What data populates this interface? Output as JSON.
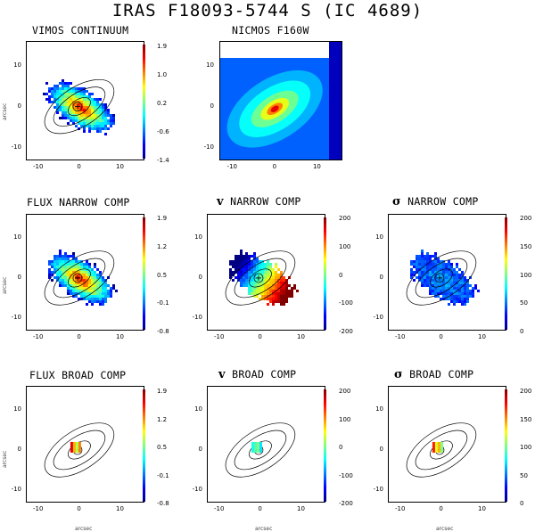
{
  "figure": {
    "title": "IRAS F18093-5744 S (IC 4689)",
    "axis_label": "arcsec",
    "y_ticks": [
      "10",
      "0",
      "-10"
    ],
    "x_ticks": [
      "-10",
      "0",
      "10"
    ]
  },
  "panels": [
    {
      "id": "p11",
      "title": "VIMOS CONTINUUM",
      "colorbar": [
        "1.9",
        "1.0",
        "0.2",
        "-0.6",
        "-1.4"
      ]
    },
    {
      "id": "p12",
      "title": "NICMOS F160W",
      "colorbar": []
    },
    {
      "id": "p21",
      "title": "FLUX NARROW COMP",
      "colorbar": [
        "1.9",
        "1.2",
        "0.5",
        "-0.1",
        "-0.8"
      ]
    },
    {
      "id": "p22",
      "title_symbol": "v",
      "title": "NARROW COMP",
      "colorbar": [
        "200",
        "100",
        "0",
        "-100",
        "-200"
      ]
    },
    {
      "id": "p23",
      "title_symbol": "σ",
      "title": "NARROW COMP",
      "colorbar": [
        "200",
        "150",
        "100",
        "50",
        "0"
      ]
    },
    {
      "id": "p31",
      "title": "FLUX BROAD COMP",
      "colorbar": [
        "1.9",
        "1.2",
        "0.5",
        "-0.1",
        "-0.8"
      ]
    },
    {
      "id": "p32",
      "title_symbol": "v",
      "title": "BROAD COMP",
      "colorbar": [
        "200",
        "100",
        "0",
        "-100",
        "-200"
      ]
    },
    {
      "id": "p33",
      "title_symbol": "σ",
      "title": "BROAD COMP",
      "colorbar": [
        "200",
        "150",
        "100",
        "50",
        "0"
      ]
    }
  ],
  "colors": {
    "jet": [
      "#000080",
      "#0000ff",
      "#0080ff",
      "#00ffff",
      "#80ff80",
      "#ffff00",
      "#ff8000",
      "#ff0000",
      "#800000"
    ]
  }
}
